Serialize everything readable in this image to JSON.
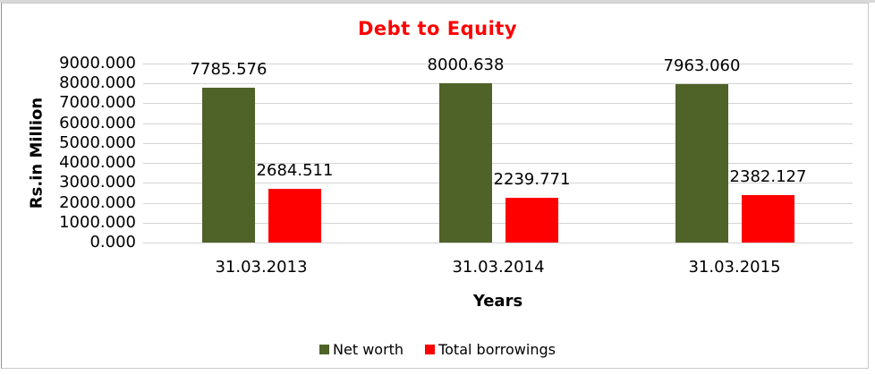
{
  "chart_data": {
    "type": "bar",
    "title": "Debt to Equity",
    "title_color": "#ff0000",
    "xlabel": "Years",
    "ylabel": "Rs.in Million",
    "categories": [
      "31.03.2013",
      "31.03.2014",
      "31.03.2015"
    ],
    "series": [
      {
        "name": "Net worth",
        "color": "#4F6228",
        "values": [
          7785.576,
          8000.638,
          7963.06
        ],
        "labels": [
          "7785.576",
          "8000.638",
          "7963.060"
        ]
      },
      {
        "name": "Total borrowings",
        "color": "#FF0000",
        "values": [
          2684.511,
          2239.771,
          2382.127
        ],
        "labels": [
          "2684.511",
          "2239.771",
          "2382.127"
        ]
      }
    ],
    "ylim": [
      0,
      9000
    ],
    "y_ticks": [
      "9000.000",
      "8000.000",
      "7000.000",
      "6000.000",
      "5000.000",
      "4000.000",
      "3000.000",
      "2000.000",
      "1000.000",
      "0.000"
    ],
    "grid": "horizontal",
    "legend_position": "bottom",
    "gridline_color": "#d4d4d4",
    "frame_color": "#d8d8d8"
  }
}
